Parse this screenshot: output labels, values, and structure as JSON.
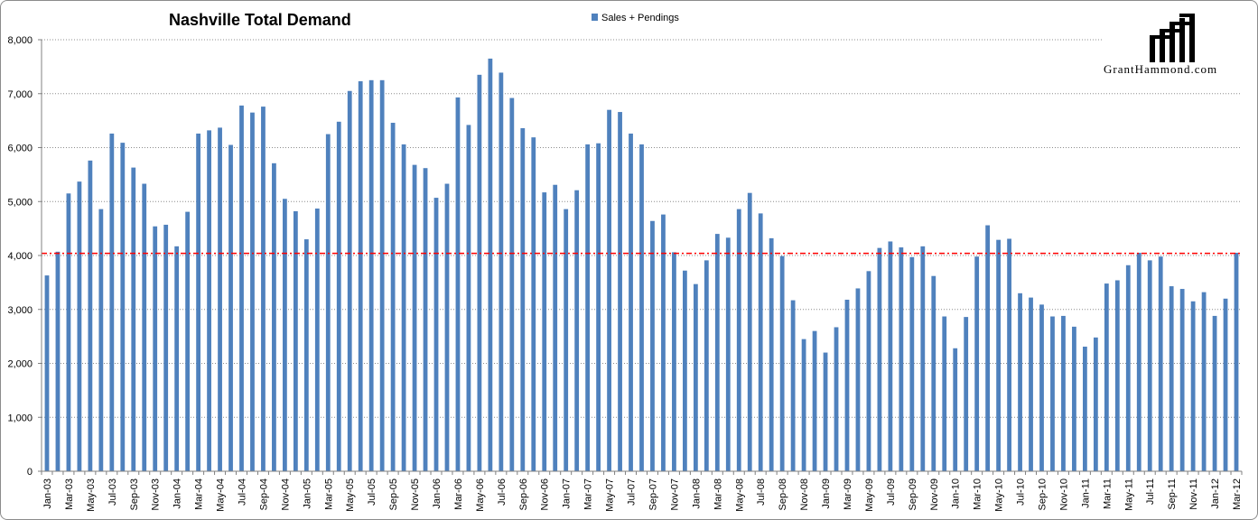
{
  "brand": {
    "name": "GrantHammond.com"
  },
  "colors": {
    "bar": "#4f81bd",
    "reference_line": "#ff0000",
    "gridline": "#8c8c8c",
    "axis": "#808080"
  },
  "chart_data": {
    "type": "bar",
    "title": "Nashville Total Demand",
    "xlabel": "",
    "ylabel": "",
    "ylim": [
      0,
      8000
    ],
    "yticks": [
      "0",
      "1,000",
      "2,000",
      "3,000",
      "4,000",
      "5,000",
      "6,000",
      "7,000",
      "8,000"
    ],
    "grid": "horizontal dotted",
    "legend_position": "top-center",
    "series": [
      {
        "name": "Sales + Pendings",
        "values": [
          3630,
          4070,
          5150,
          5370,
          5760,
          4860,
          6260,
          6090,
          5630,
          5330,
          4540,
          4570,
          4170,
          4810,
          6260,
          6320,
          6370,
          6050,
          6780,
          6650,
          6760,
          5710,
          5050,
          4820,
          4300,
          4870,
          6250,
          6480,
          7050,
          7230,
          7250,
          7250,
          6460,
          6060,
          5680,
          5620,
          5070,
          5330,
          6930,
          6420,
          7350,
          7650,
          7390,
          6920,
          6360,
          6190,
          5170,
          5310,
          4860,
          5210,
          6060,
          6080,
          6700,
          6660,
          6260,
          6060,
          4640,
          4760,
          4060,
          3720,
          3470,
          3910,
          4400,
          4330,
          4860,
          5160,
          4780,
          4320,
          3990,
          3170,
          2450,
          2600,
          2200,
          2670,
          3180,
          3390,
          3710,
          4140,
          4260,
          4150,
          3970,
          4170,
          3620,
          2870,
          2280,
          2860,
          3980,
          4560,
          4290,
          4310,
          3300,
          3220,
          3090,
          2870,
          2880,
          2680,
          2310,
          2480,
          3480,
          3540,
          3820,
          4050,
          3910,
          3980,
          3430,
          3380,
          3150,
          3320,
          2880,
          3200,
          4050
        ]
      }
    ],
    "categories": [
      "Jan-03",
      "Feb-03",
      "Mar-03",
      "Apr-03",
      "May-03",
      "Jun-03",
      "Jul-03",
      "Aug-03",
      "Sep-03",
      "Oct-03",
      "Nov-03",
      "Dec-03",
      "Jan-04",
      "Feb-04",
      "Mar-04",
      "Apr-04",
      "May-04",
      "Jun-04",
      "Jul-04",
      "Aug-04",
      "Sep-04",
      "Oct-04",
      "Nov-04",
      "Dec-04",
      "Jan-05",
      "Feb-05",
      "Mar-05",
      "Apr-05",
      "May-05",
      "Jun-05",
      "Jul-05",
      "Aug-05",
      "Sep-05",
      "Oct-05",
      "Nov-05",
      "Dec-05",
      "Jan-06",
      "Feb-06",
      "Mar-06",
      "Apr-06",
      "May-06",
      "Jun-06",
      "Jul-06",
      "Aug-06",
      "Sep-06",
      "Oct-06",
      "Nov-06",
      "Dec-06",
      "Jan-07",
      "Feb-07",
      "Mar-07",
      "Apr-07",
      "May-07",
      "Jun-07",
      "Jul-07",
      "Aug-07",
      "Sep-07",
      "Oct-07",
      "Nov-07",
      "Dec-07",
      "Jan-08",
      "Feb-08",
      "Mar-08",
      "Apr-08",
      "May-08",
      "Jun-08",
      "Jul-08",
      "Aug-08",
      "Sep-08",
      "Oct-08",
      "Nov-08",
      "Dec-08",
      "Jan-09",
      "Feb-09",
      "Mar-09",
      "Apr-09",
      "May-09",
      "Jun-09",
      "Jul-09",
      "Aug-09",
      "Sep-09",
      "Oct-09",
      "Nov-09",
      "Dec-09",
      "Jan-10",
      "Feb-10",
      "Mar-10",
      "Apr-10",
      "May-10",
      "Jun-10",
      "Jul-10",
      "Aug-10",
      "Sep-10",
      "Oct-10",
      "Nov-10",
      "Dec-10",
      "Jan-11",
      "Feb-11",
      "Mar-11",
      "Apr-11",
      "May-11",
      "Jun-11",
      "Jul-11",
      "Aug-11",
      "Sep-11",
      "Oct-11",
      "Nov-11",
      "Dec-11",
      "Jan-12",
      "Feb-12",
      "Mar-12"
    ],
    "xtick_labels": [
      "Jan-03",
      "Mar-03",
      "May-03",
      "Jul-03",
      "Sep-03",
      "Nov-03",
      "Jan-04",
      "Mar-04",
      "May-04",
      "Jul-04",
      "Sep-04",
      "Nov-04",
      "Jan-05",
      "Mar-05",
      "May-05",
      "Jul-05",
      "Sep-05",
      "Nov-05",
      "Jan-06",
      "Mar-06",
      "May-06",
      "Jul-06",
      "Sep-06",
      "Nov-06",
      "Jan-07",
      "Mar-07",
      "May-07",
      "Jul-07",
      "Sep-07",
      "Nov-07",
      "Jan-08",
      "Mar-08",
      "May-08",
      "Jul-08",
      "Sep-08",
      "Nov-08",
      "Jan-09",
      "Mar-09",
      "May-09",
      "Jul-09",
      "Sep-09",
      "Nov-09",
      "Jan-10",
      "Mar-10",
      "May-10",
      "Jul-10",
      "Sep-10",
      "Nov-10",
      "Jan-11",
      "Mar-11",
      "May-11",
      "Jul-11",
      "Sep-11",
      "Nov-11",
      "Jan-12",
      "Mar-12"
    ],
    "reference_line": {
      "value": 4040,
      "style": "dash-dot"
    }
  }
}
